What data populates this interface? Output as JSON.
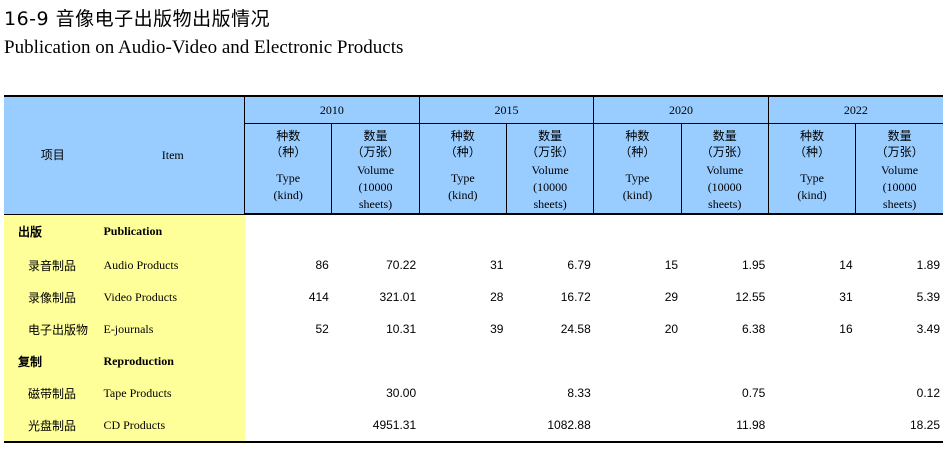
{
  "title_cn": "16-9 音像电子出版物出版情况",
  "title_en": "Publication on Audio-Video and Electronic Products",
  "header": {
    "item_cn": "项目",
    "item_en": "Item",
    "years": [
      "2010",
      "2015",
      "2020",
      "2022"
    ],
    "type_cn_1": "种数",
    "type_cn_2": "（种）",
    "type_en_1": "Type",
    "type_en_2": "(kind)",
    "vol_cn_1": "数量",
    "vol_cn_2": "（万张）",
    "vol_en_1": "Volume",
    "vol_en_2": "(10000",
    "vol_en_3": "sheets)"
  },
  "rows": [
    {
      "cn": "出版",
      "en": "Publication",
      "section": true,
      "values": [
        "",
        "",
        "",
        "",
        "",
        "",
        "",
        ""
      ]
    },
    {
      "cn": "录音制品",
      "en": "Audio Products",
      "section": false,
      "values": [
        "86",
        "70.22",
        "31",
        "6.79",
        "15",
        "1.95",
        "14",
        "1.89"
      ]
    },
    {
      "cn": "录像制品",
      "en": "Video Products",
      "section": false,
      "values": [
        "414",
        "321.01",
        "28",
        "16.72",
        "29",
        "12.55",
        "31",
        "5.39"
      ]
    },
    {
      "cn": "电子出版物",
      "en": "E-journals",
      "section": false,
      "values": [
        "52",
        "10.31",
        "39",
        "24.58",
        "20",
        "6.38",
        "16",
        "3.49"
      ]
    },
    {
      "cn": "复制",
      "en": "Reproduction",
      "section": true,
      "values": [
        "",
        "",
        "",
        "",
        "",
        "",
        "",
        ""
      ]
    },
    {
      "cn": "磁带制品",
      "en": "Tape Products",
      "section": false,
      "values": [
        "",
        "30.00",
        "",
        "8.33",
        "",
        "0.75",
        "",
        "0.12"
      ]
    },
    {
      "cn": "光盘制品",
      "en": "CD Products",
      "section": false,
      "values": [
        "",
        "4951.31",
        "",
        "1082.88",
        "",
        "11.98",
        "",
        "18.25"
      ]
    }
  ]
}
